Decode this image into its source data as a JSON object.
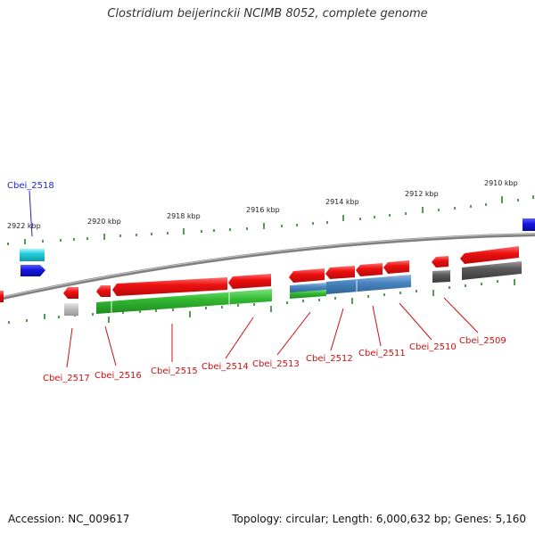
{
  "title": "Clostridium beijerinckii NCIMB 8052, complete genome",
  "footer": {
    "accession": "Accession: NC_009617",
    "topology": "Topology: circular; Length: 6,000,632 bp; Genes: 5,160"
  },
  "colors": {
    "forward_gene": "#ee1111",
    "highlight_gene": "#2222dd",
    "cyan_feature": "#22ccdd",
    "green_feature": "#33bb33",
    "steelblue_feature": "#4a86c0",
    "gray_feature": "#555555",
    "lightgray_feature": "#bbbbbb",
    "backbone": "#888888",
    "tick": "#1a7a1a",
    "label_red": "#cc1111",
    "label_blue": "#2222cc"
  },
  "scale_ticks": [
    {
      "label": "2922 kbp"
    },
    {
      "label": "2920 kbp"
    },
    {
      "label": "2918 kbp"
    },
    {
      "label": "2916 kbp"
    },
    {
      "label": "2914 kbp"
    },
    {
      "label": "2912 kbp"
    },
    {
      "label": "2910 kbp"
    }
  ],
  "gene_labels": [
    {
      "text": "Cbei_2518",
      "color": "blue"
    },
    {
      "text": "Cbei_2517",
      "color": "red"
    },
    {
      "text": "Cbei_2516",
      "color": "red"
    },
    {
      "text": "Cbei_2515",
      "color": "red"
    },
    {
      "text": "Cbei_2514",
      "color": "red"
    },
    {
      "text": "Cbei_2513",
      "color": "red"
    },
    {
      "text": "Cbei_2512",
      "color": "red"
    },
    {
      "text": "Cbei_2511",
      "color": "red"
    },
    {
      "text": "Cbei_2510",
      "color": "red"
    },
    {
      "text": "Cbei_2509",
      "color": "red"
    }
  ]
}
